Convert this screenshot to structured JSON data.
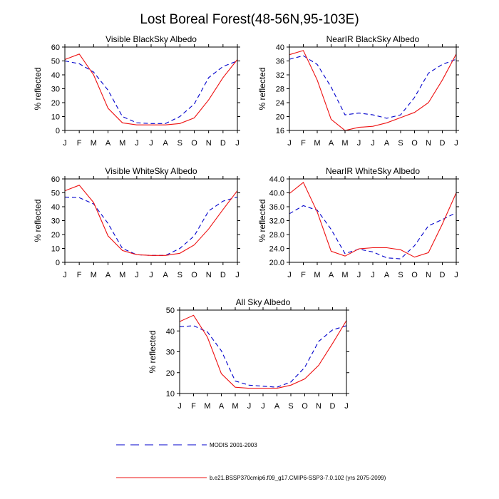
{
  "page_title": "Lost Boreal Forest(48-56N,95-103E)",
  "legend": {
    "modis_label": "MODIS 2001-2003",
    "model_label": "b.e21.BSSP370cmip6.f09_g17.CMIP6-SSP3-7.0.102 (yrs 2075-2099)"
  },
  "colors": {
    "modis": "#0000cc",
    "model": "#ee1111"
  },
  "chart_data": [
    {
      "type": "line",
      "title": "Visible BlackSky Albedo",
      "ylabel": "% reflected",
      "xlabel": "",
      "categories": [
        "J",
        "F",
        "M",
        "A",
        "M",
        "J",
        "J",
        "A",
        "S",
        "O",
        "N",
        "D",
        "J"
      ],
      "ylim": [
        0,
        60
      ],
      "yticks": [
        0,
        10,
        20,
        30,
        40,
        50,
        60
      ],
      "ytick_labels": [
        "0",
        "10",
        "20",
        "30",
        "40",
        "50",
        "60"
      ],
      "series": [
        {
          "key": "modis",
          "values": [
            50,
            48,
            42,
            29,
            10,
            5.5,
            5,
            5,
            10,
            19,
            38,
            46,
            50
          ]
        },
        {
          "key": "model",
          "values": [
            51,
            55,
            40,
            16,
            5.5,
            4,
            4,
            4,
            5,
            9,
            22,
            38,
            51
          ]
        }
      ]
    },
    {
      "type": "line",
      "title": "NearIR BlackSky Albedo",
      "ylabel": "% reflected",
      "xlabel": "",
      "categories": [
        "J",
        "F",
        "M",
        "A",
        "M",
        "J",
        "J",
        "A",
        "S",
        "O",
        "N",
        "D",
        "J"
      ],
      "ylim": [
        16,
        40
      ],
      "yticks": [
        16,
        20,
        24,
        28,
        32,
        36,
        40
      ],
      "ytick_labels": [
        "16",
        "20",
        "24",
        "28",
        "32",
        "36",
        "40"
      ],
      "series": [
        {
          "key": "modis",
          "values": [
            36.5,
            37.5,
            35,
            28.5,
            20.5,
            21,
            20.5,
            19.5,
            20.5,
            25.5,
            32.5,
            35,
            36.5
          ]
        },
        {
          "key": "model",
          "values": [
            37.8,
            39,
            30.5,
            19.2,
            16,
            16.9,
            17.2,
            18.2,
            19.7,
            21.2,
            24,
            30.5,
            38
          ]
        }
      ]
    },
    {
      "type": "line",
      "title": "Visible WhiteSky Albedo",
      "ylabel": "% reflected",
      "xlabel": "",
      "categories": [
        "J",
        "F",
        "M",
        "A",
        "M",
        "J",
        "J",
        "A",
        "S",
        "O",
        "N",
        "D",
        "J"
      ],
      "ylim": [
        0,
        60
      ],
      "yticks": [
        0,
        10,
        20,
        30,
        40,
        50,
        60
      ],
      "ytick_labels": [
        "0",
        "10",
        "20",
        "30",
        "40",
        "50",
        "60"
      ],
      "series": [
        {
          "key": "modis",
          "values": [
            47,
            46.5,
            42,
            28,
            10,
            5.5,
            5,
            5,
            10,
            19,
            37,
            44,
            47
          ]
        },
        {
          "key": "model",
          "values": [
            51.5,
            55.5,
            43,
            19,
            8.5,
            5.5,
            5,
            5,
            6.5,
            12.5,
            24,
            38,
            51.5
          ]
        }
      ]
    },
    {
      "type": "line",
      "title": "NearIR WhiteSky Albedo",
      "ylabel": "% reflected",
      "xlabel": "",
      "categories": [
        "J",
        "F",
        "M",
        "A",
        "M",
        "J",
        "J",
        "A",
        "S",
        "O",
        "N",
        "D",
        "J"
      ],
      "ylim": [
        20,
        44
      ],
      "yticks": [
        20,
        24,
        28,
        32,
        36,
        40,
        44
      ],
      "ytick_labels": [
        "20.0",
        "24.0",
        "28.0",
        "32.0",
        "36.0",
        "40.0",
        "44.0"
      ],
      "series": [
        {
          "key": "modis",
          "values": [
            34,
            36.3,
            35,
            29.5,
            22.5,
            23.8,
            23,
            21.3,
            21,
            24.8,
            30.5,
            32.3,
            34.3
          ]
        },
        {
          "key": "model",
          "values": [
            39.8,
            43,
            34.5,
            23.2,
            21.8,
            23.9,
            24.2,
            24.2,
            23.6,
            21.5,
            22.8,
            31,
            40
          ]
        }
      ]
    },
    {
      "type": "line",
      "title": "All Sky Albedo",
      "ylabel": "% reflected",
      "xlabel": "",
      "categories": [
        "J",
        "F",
        "M",
        "A",
        "M",
        "J",
        "J",
        "A",
        "S",
        "O",
        "N",
        "D",
        "J"
      ],
      "ylim": [
        10,
        50
      ],
      "yticks": [
        10,
        20,
        30,
        40,
        50
      ],
      "ytick_labels": [
        "10",
        "20",
        "30",
        "40",
        "50"
      ],
      "series": [
        {
          "key": "modis",
          "values": [
            42,
            42.5,
            39.5,
            30.5,
            16,
            14,
            13.5,
            13,
            15.5,
            22.5,
            35,
            40.5,
            42.5
          ]
        },
        {
          "key": "model",
          "values": [
            44.5,
            47.5,
            37,
            19.5,
            13,
            12.5,
            12.5,
            12.5,
            14,
            17,
            23.5,
            34,
            45
          ]
        }
      ]
    }
  ]
}
